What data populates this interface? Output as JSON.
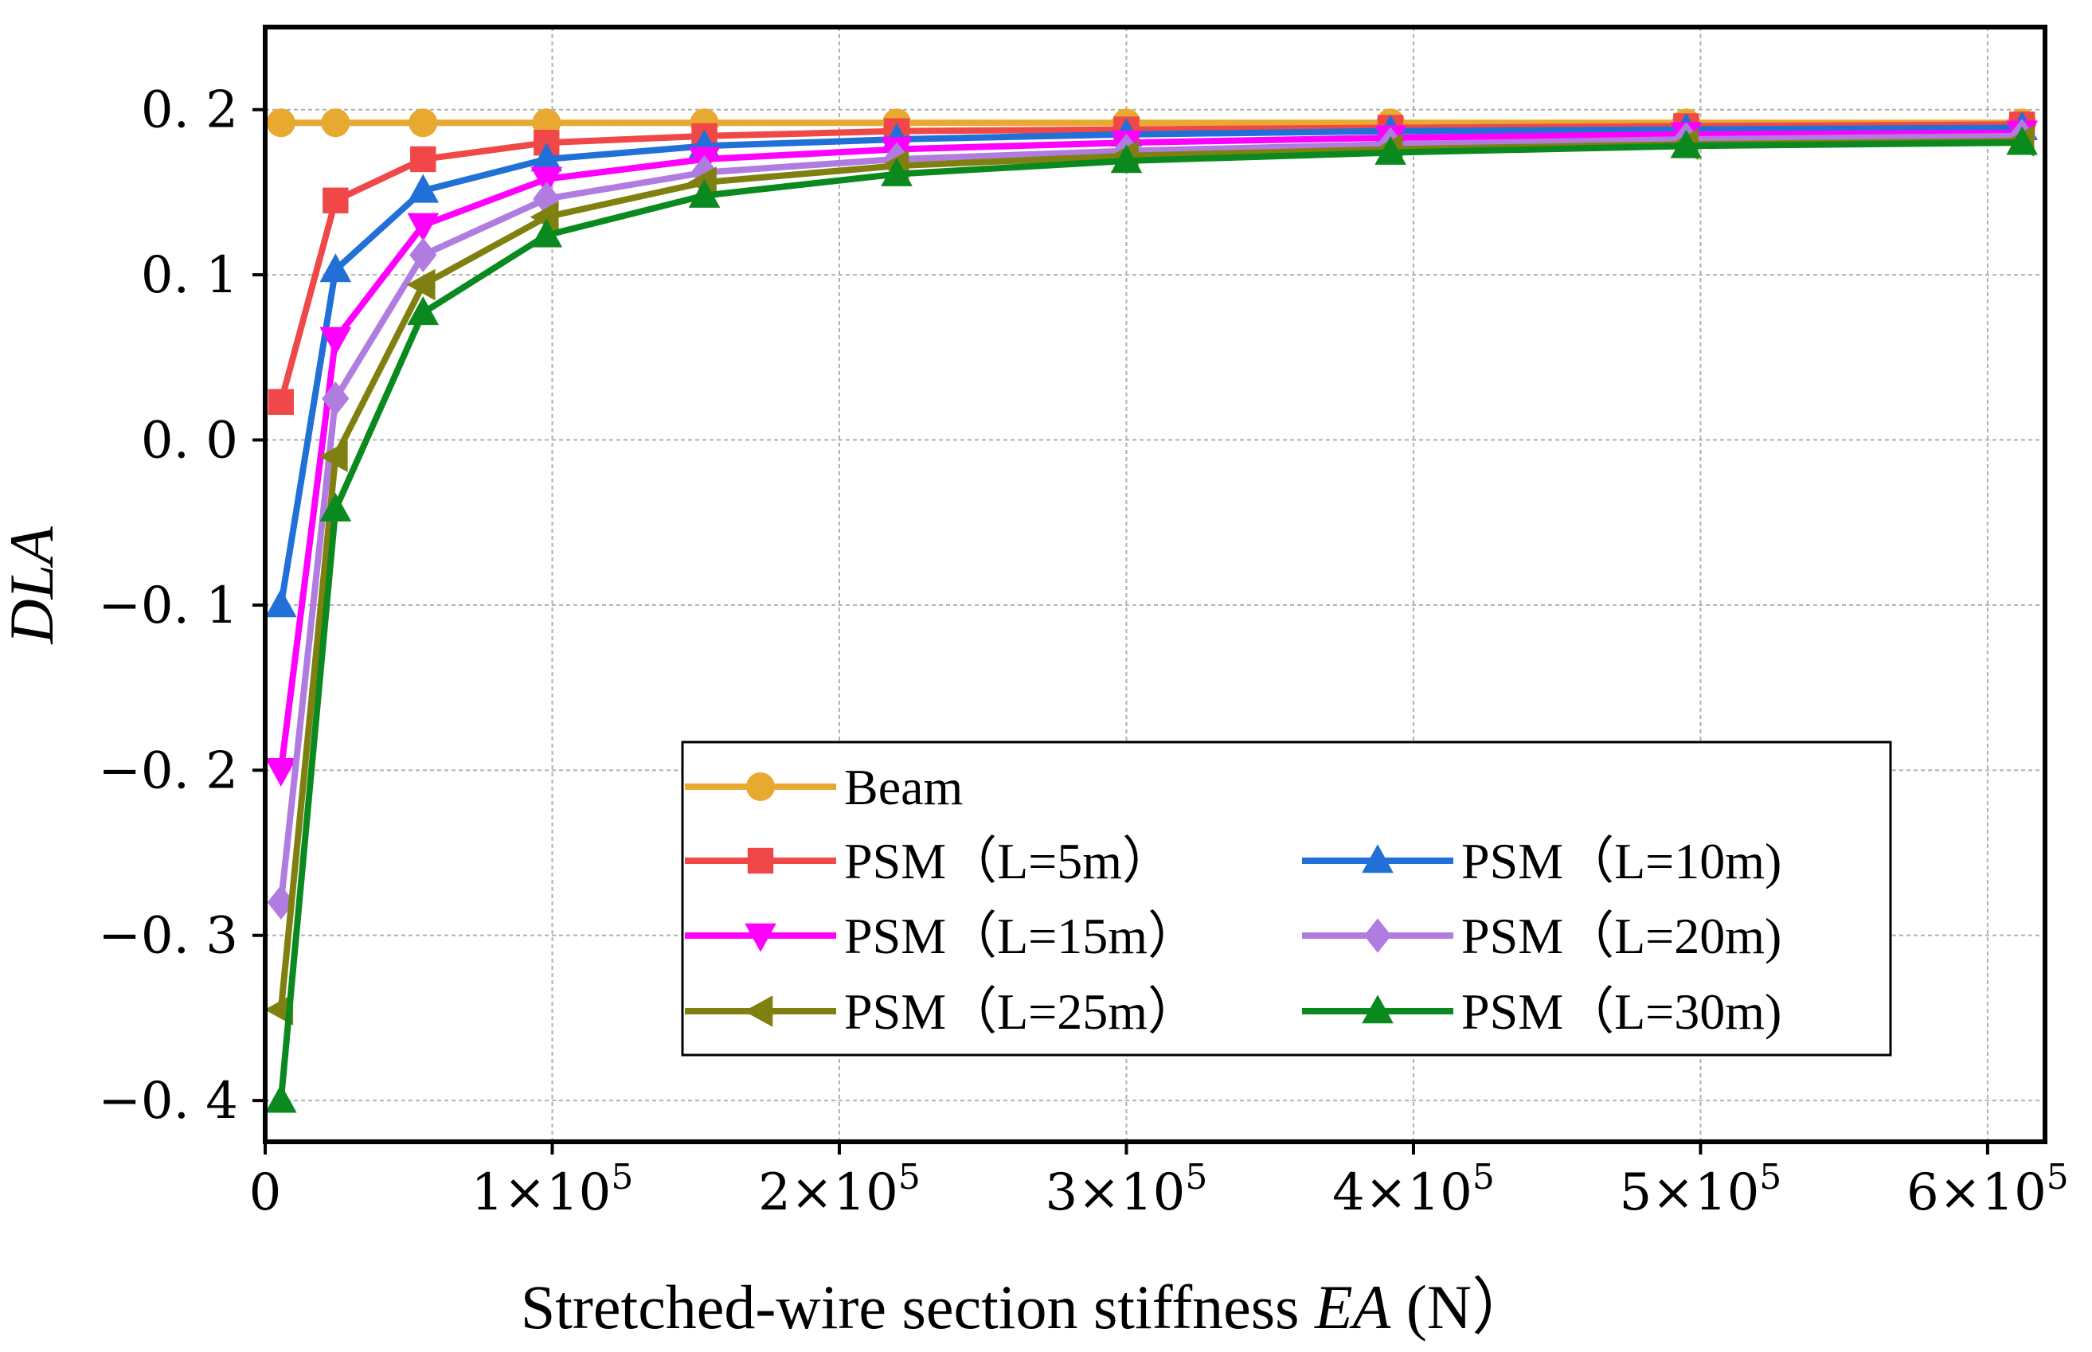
{
  "chart_data": {
    "type": "line",
    "title": "",
    "xlabel_prefix": "Stretched-wire section stiffness ",
    "xlabel_var": "EA",
    "xlabel_unit": " (N）",
    "ylabel": "DLA",
    "xlim": [
      0,
      620000
    ],
    "ylim": [
      -0.425,
      0.25
    ],
    "grid": true,
    "legend_position": "lower-right",
    "x_ticks": [
      {
        "value": 0,
        "label": "0"
      },
      {
        "value": 100000,
        "mantissa": "1×10",
        "exp": "5"
      },
      {
        "value": 200000,
        "mantissa": "2×10",
        "exp": "5"
      },
      {
        "value": 300000,
        "mantissa": "3×10",
        "exp": "5"
      },
      {
        "value": 400000,
        "mantissa": "4×10",
        "exp": "5"
      },
      {
        "value": 500000,
        "mantissa": "5×10",
        "exp": "5"
      },
      {
        "value": 600000,
        "mantissa": "6×10",
        "exp": "5"
      }
    ],
    "y_ticks": [
      {
        "value": 0.2,
        "label": "0. 2"
      },
      {
        "value": 0.1,
        "label": "0. 1"
      },
      {
        "value": 0.0,
        "label": "0. 0"
      },
      {
        "value": -0.1,
        "label": "−0. 1"
      },
      {
        "value": -0.2,
        "label": "−0. 2"
      },
      {
        "value": -0.3,
        "label": "−0. 3"
      },
      {
        "value": -0.4,
        "label": "−0. 4"
      }
    ],
    "x": [
      5500,
      24500,
      55000,
      98000,
      153000,
      220000,
      300000,
      392000,
      495000,
      612000
    ],
    "series": [
      {
        "name": "Beam",
        "color": "#E8A930",
        "marker": "circle",
        "values": [
          0.192,
          0.192,
          0.192,
          0.192,
          0.192,
          0.192,
          0.192,
          0.192,
          0.192,
          0.192
        ]
      },
      {
        "name": "PSM（L=5m）",
        "color": "#F04848",
        "marker": "square",
        "values": [
          0.023,
          0.145,
          0.17,
          0.18,
          0.184,
          0.187,
          0.188,
          0.189,
          0.19,
          0.191
        ]
      },
      {
        "name": "PSM（L=10m)",
        "color": "#2070D8",
        "marker": "triangle-up",
        "values": [
          -0.1,
          0.103,
          0.151,
          0.17,
          0.178,
          0.182,
          0.185,
          0.187,
          0.188,
          0.189
        ]
      },
      {
        "name": "PSM（L=15m）",
        "color": "#FF00FF",
        "marker": "triangle-down",
        "values": [
          -0.2,
          0.061,
          0.13,
          0.158,
          0.17,
          0.176,
          0.18,
          0.183,
          0.185,
          0.186
        ]
      },
      {
        "name": "PSM（L=20m)",
        "color": "#B07CE0",
        "marker": "diamond",
        "values": [
          -0.28,
          0.025,
          0.112,
          0.146,
          0.162,
          0.17,
          0.175,
          0.179,
          0.182,
          0.184
        ]
      },
      {
        "name": "PSM（L=25m）",
        "color": "#808010",
        "marker": "triangle-left",
        "values": [
          -0.345,
          -0.01,
          0.094,
          0.135,
          0.156,
          0.166,
          0.172,
          0.176,
          0.179,
          0.181
        ]
      },
      {
        "name": "PSM（L=30m)",
        "color": "#0A8A1E",
        "marker": "triangle-up",
        "values": [
          -0.4,
          -0.042,
          0.077,
          0.124,
          0.148,
          0.161,
          0.169,
          0.174,
          0.178,
          0.18
        ]
      }
    ]
  }
}
